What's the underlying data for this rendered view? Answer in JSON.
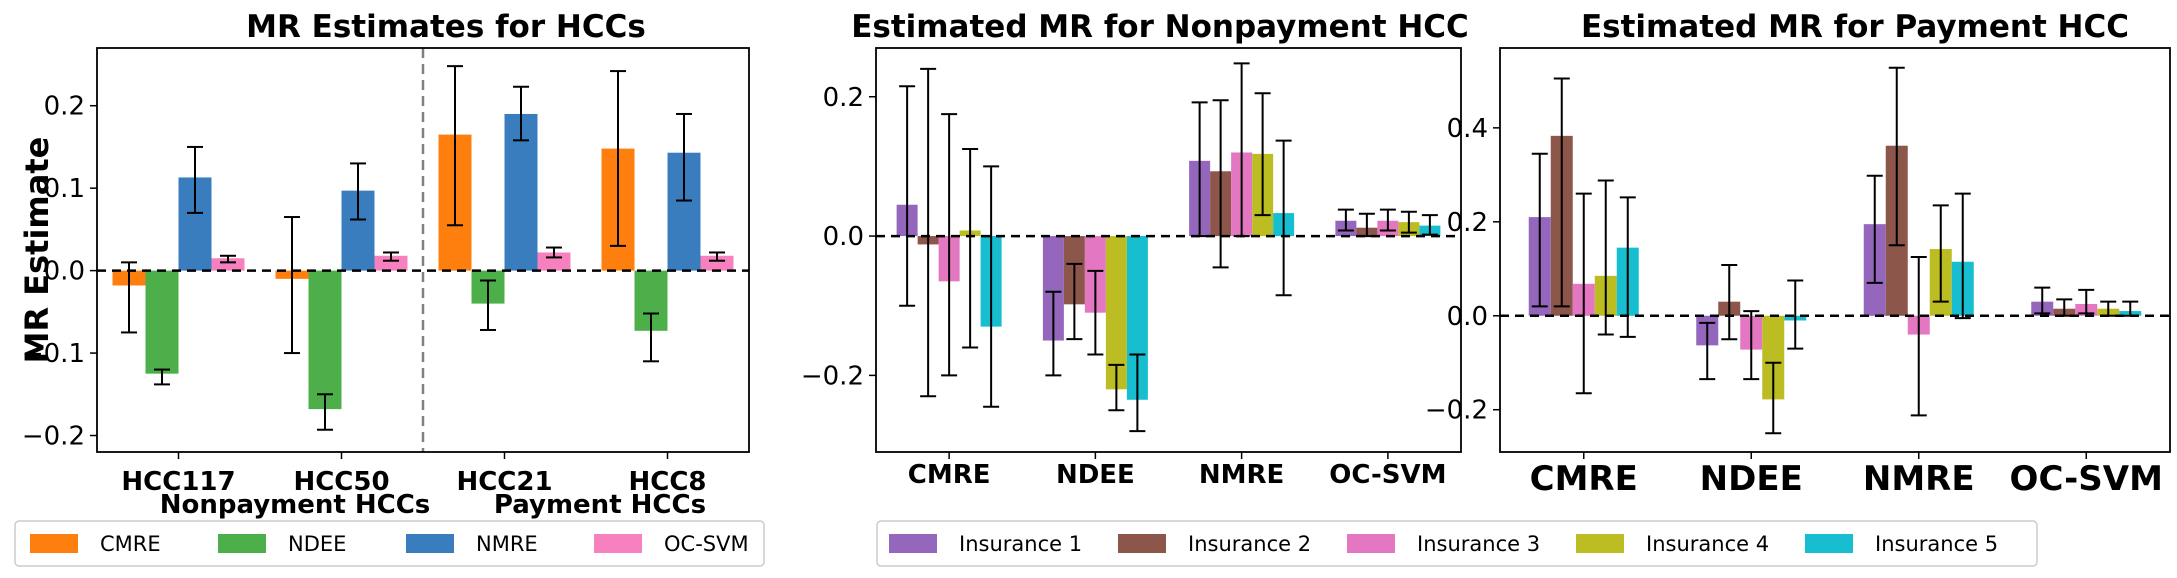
{
  "chart_data": [
    {
      "type": "bar",
      "title": "MR Estimates for HCCs",
      "ylabel": "MR Estimate",
      "xlabel": "",
      "categories": [
        "HCC117",
        "HCC50",
        "HCC21",
        "HCC8"
      ],
      "group_labels": [
        "Nonpayment HCCs",
        "Payment HCCs"
      ],
      "ylim": [
        -0.22,
        0.27
      ],
      "yticks": [
        -0.2,
        -0.1,
        0.0,
        0.1,
        0.2
      ],
      "ytick_labels": [
        "−0.2",
        "−0.1",
        "0.0",
        "0.1",
        "0.2"
      ],
      "series": [
        {
          "name": "CMRE",
          "color": "#ff7f0e",
          "values": [
            -0.018,
            -0.01,
            0.165,
            0.148
          ],
          "err_low": [
            -0.075,
            -0.1,
            0.055,
            0.03
          ],
          "err_high": [
            0.01,
            0.065,
            0.248,
            0.242
          ]
        },
        {
          "name": "NDEE",
          "color": "#4daf4a",
          "values": [
            -0.125,
            -0.168,
            -0.04,
            -0.073
          ],
          "err_low": [
            -0.138,
            -0.193,
            -0.072,
            -0.11
          ],
          "err_high": [
            -0.12,
            -0.15,
            -0.012,
            -0.052
          ]
        },
        {
          "name": "NMRE",
          "color": "#3a7dbf",
          "values": [
            0.113,
            0.097,
            0.19,
            0.143
          ],
          "err_low": [
            0.07,
            0.062,
            0.158,
            0.085
          ],
          "err_high": [
            0.15,
            0.13,
            0.223,
            0.19
          ]
        },
        {
          "name": "OC-SVM",
          "color": "#f781bf",
          "values": [
            0.015,
            0.018,
            0.022,
            0.018
          ],
          "err_low": [
            0.01,
            0.012,
            0.016,
            0.012
          ],
          "err_high": [
            0.018,
            0.022,
            0.028,
            0.022
          ]
        }
      ],
      "legend_position": "bottom",
      "divider_between": [
        1,
        2
      ]
    },
    {
      "type": "bar",
      "title": "Estimated MR for Nonpayment HCC",
      "ylabel": "",
      "xlabel": "",
      "categories": [
        "CMRE",
        "NDEE",
        "NMRE",
        "OC-SVM"
      ],
      "ylim": [
        -0.31,
        0.27
      ],
      "yticks": [
        -0.2,
        0.0,
        0.2
      ],
      "ytick_labels": [
        "−0.2",
        "0.0",
        "0.2"
      ],
      "series": [
        {
          "name": "Insurance 1",
          "color": "#9467bd",
          "values": [
            0.045,
            -0.15,
            0.108,
            0.022
          ],
          "err_low": [
            -0.1,
            -0.2,
            0.0,
            0.008
          ],
          "err_high": [
            0.215,
            -0.08,
            0.192,
            0.038
          ]
        },
        {
          "name": "Insurance 2",
          "color": "#8c564b",
          "values": [
            -0.012,
            -0.098,
            0.093,
            0.012
          ],
          "err_low": [
            -0.23,
            -0.148,
            -0.045,
            0.0
          ],
          "err_high": [
            0.24,
            -0.04,
            0.195,
            0.032
          ]
        },
        {
          "name": "Insurance 3",
          "color": "#e377c2",
          "values": [
            -0.065,
            -0.11,
            0.12,
            0.022
          ],
          "err_low": [
            -0.2,
            -0.17,
            0.0,
            0.008
          ],
          "err_high": [
            0.175,
            -0.05,
            0.248,
            0.038
          ]
        },
        {
          "name": "Insurance 4",
          "color": "#bcbd22",
          "values": [
            0.008,
            -0.22,
            0.118,
            0.02
          ],
          "err_low": [
            -0.16,
            -0.25,
            0.03,
            0.005
          ],
          "err_high": [
            0.125,
            -0.185,
            0.205,
            0.035
          ]
        },
        {
          "name": "Insurance 5",
          "color": "#17becf",
          "values": [
            -0.13,
            -0.235,
            0.033,
            0.015
          ],
          "err_low": [
            -0.245,
            -0.28,
            -0.085,
            0.002
          ],
          "err_high": [
            0.1,
            -0.17,
            0.137,
            0.03
          ]
        }
      ],
      "legend_position": "bottom"
    },
    {
      "type": "bar",
      "title": "Estimated MR for Payment HCC",
      "ylabel": "",
      "xlabel": "",
      "categories": [
        "CMRE",
        "NDEE",
        "NMRE",
        "OC-SVM"
      ],
      "ylim": [
        -0.29,
        0.57
      ],
      "yticks": [
        -0.2,
        0.0,
        0.2,
        0.4
      ],
      "ytick_labels": [
        "−0.2",
        "0.0",
        "0.2",
        "0.4"
      ],
      "series": [
        {
          "name": "Insurance 1",
          "color": "#9467bd",
          "values": [
            0.21,
            -0.063,
            0.195,
            0.03
          ],
          "err_low": [
            0.02,
            -0.135,
            0.07,
            0.005
          ],
          "err_high": [
            0.345,
            -0.015,
            0.298,
            0.06
          ]
        },
        {
          "name": "Insurance 2",
          "color": "#8c564b",
          "values": [
            0.383,
            0.03,
            0.362,
            0.015
          ],
          "err_low": [
            0.02,
            -0.05,
            0.15,
            0.0
          ],
          "err_high": [
            0.505,
            0.108,
            0.528,
            0.035
          ]
        },
        {
          "name": "Insurance 3",
          "color": "#e377c2",
          "values": [
            0.068,
            -0.072,
            -0.04,
            0.025
          ],
          "err_low": [
            -0.165,
            -0.135,
            -0.212,
            0.005
          ],
          "err_high": [
            0.26,
            0.01,
            0.125,
            0.055
          ]
        },
        {
          "name": "Insurance 4",
          "color": "#bcbd22",
          "values": [
            0.085,
            -0.178,
            0.142,
            0.015
          ],
          "err_low": [
            -0.04,
            -0.25,
            0.03,
            0.0
          ],
          "err_high": [
            0.288,
            -0.1,
            0.235,
            0.03
          ]
        },
        {
          "name": "Insurance 5",
          "color": "#17becf",
          "values": [
            0.145,
            -0.01,
            0.115,
            0.01
          ],
          "err_low": [
            -0.045,
            -0.07,
            -0.005,
            0.0
          ],
          "err_high": [
            0.252,
            0.075,
            0.26,
            0.03
          ]
        }
      ],
      "legend_position": "bottom"
    }
  ]
}
